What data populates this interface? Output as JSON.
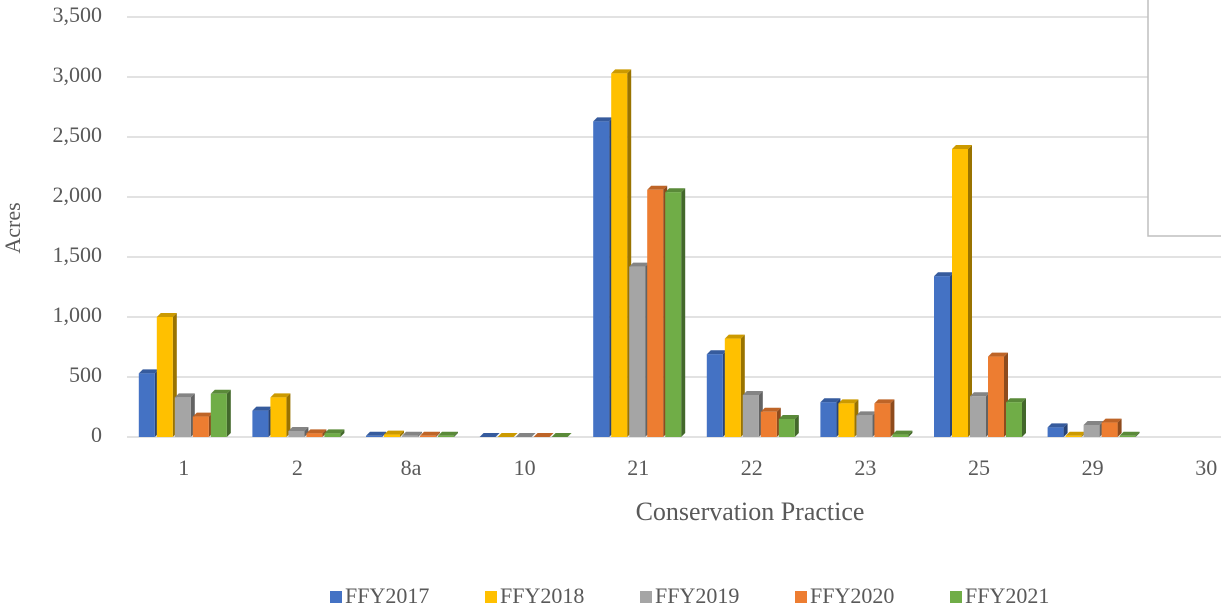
{
  "chart_data": {
    "type": "bar",
    "x_label": "Conservation Practice",
    "y_label": "Acres",
    "categories": [
      "1",
      "2",
      "8a",
      "10",
      "21",
      "22",
      "23",
      "25",
      "29",
      "30"
    ],
    "series": [
      {
        "name": "FFY2017",
        "color": "#4472c4",
        "values": [
          530,
          220,
          10,
          0,
          2630,
          690,
          290,
          1340,
          80,
          null
        ]
      },
      {
        "name": "FFY2018",
        "color": "#ffc000",
        "values": [
          1000,
          330,
          20,
          0,
          3030,
          820,
          280,
          2400,
          10,
          null
        ]
      },
      {
        "name": "FFY2019",
        "color": "#a5a5a5",
        "values": [
          330,
          50,
          10,
          0,
          1420,
          350,
          180,
          340,
          100,
          null
        ]
      },
      {
        "name": "FFY2020",
        "color": "#ed7d31",
        "values": [
          170,
          30,
          10,
          0,
          2060,
          210,
          280,
          670,
          120,
          null
        ]
      },
      {
        "name": "FFY2021",
        "color": "#70ad47",
        "values": [
          360,
          30,
          10,
          0,
          2040,
          150,
          20,
          290,
          10,
          null
        ]
      }
    ],
    "ylim": [
      0,
      3500
    ],
    "yticks": [
      0,
      500,
      {
        "value": 1000,
        "label": "1,000"
      },
      {
        "value": 1500,
        "label": "1,500"
      },
      {
        "value": 2000,
        "label": "2,000"
      },
      {
        "value": 2500,
        "label": "2,500"
      },
      {
        "value": 3000,
        "label": "3,000"
      },
      {
        "value": 3500,
        "label": "3,500"
      }
    ],
    "grid": true,
    "legend": "bottom"
  }
}
